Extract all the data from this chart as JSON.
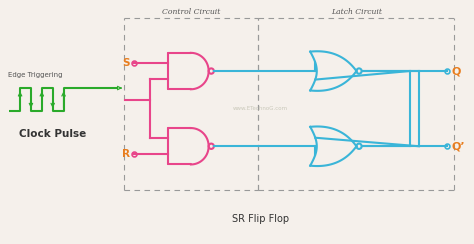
{
  "title": "SR Flip Flop",
  "control_label": "Control Circuit",
  "latch_label": "Latch Circuit",
  "edge_trigger_label": "Edge Triggering",
  "clock_label": "Clock Pulse",
  "s_label": "S",
  "r_label": "R",
  "q_label": "Q",
  "qbar_label": "Q’",
  "watermark": "www.ETechnoG.com",
  "bg_color": "#f5f0eb",
  "pink_color": "#e8458a",
  "blue_color": "#3ab5d8",
  "green_color": "#2aaa2a",
  "orange_color": "#e87d1e",
  "dashed_box_color": "#999999",
  "text_color": "#555555",
  "title_color": "#333333",
  "figw": 4.74,
  "figh": 2.44,
  "dpi": 100
}
